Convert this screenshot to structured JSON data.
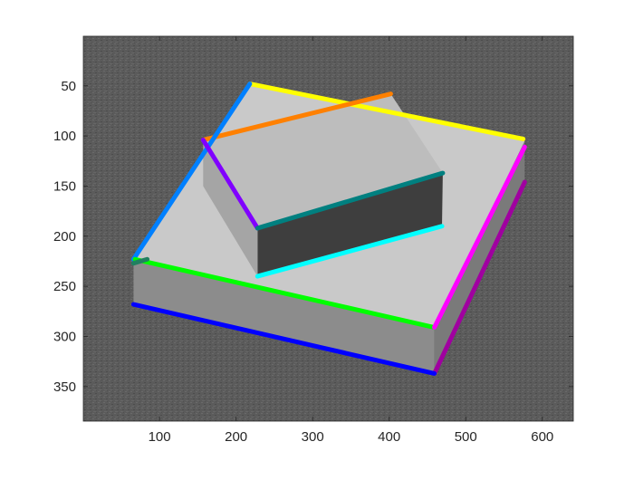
{
  "figure": {
    "background": "#ffffff"
  },
  "axes": {
    "x_ticks": [
      100,
      200,
      300,
      400,
      500,
      600
    ],
    "y_ticks": [
      50,
      100,
      150,
      200,
      250,
      300,
      350
    ],
    "x_range": [
      0.5,
      640.5
    ],
    "y_range": [
      0.5,
      384.5
    ],
    "y_reversed": true,
    "box": true,
    "tick_direction": "in"
  },
  "image": {
    "content": "grayscale SEM micrograph of two stacked rectangular blocks on a textured substrate",
    "background_gray": "#5b5b5b",
    "face_gray_top": "#c8c8c8",
    "face_gray_side": "#4a4a4a"
  },
  "edge_lines": [
    {
      "name": "yellow",
      "color": "#ffff00",
      "points": [
        [
          218,
          48
        ],
        [
          575,
          103
        ]
      ]
    },
    {
      "name": "orange",
      "color": "#ff8000",
      "points": [
        [
          157,
          104
        ],
        [
          402,
          58
        ]
      ]
    },
    {
      "name": "azure",
      "color": "#0080ff",
      "points": [
        [
          66,
          223
        ],
        [
          218,
          48
        ]
      ]
    },
    {
      "name": "violet",
      "color": "#8000ff",
      "points": [
        [
          157,
          104
        ],
        [
          228,
          192
        ]
      ]
    },
    {
      "name": "teal",
      "color": "#008080",
      "points": [
        [
          228,
          192
        ],
        [
          470,
          137
        ]
      ]
    },
    {
      "name": "cyan",
      "color": "#00ffff",
      "points": [
        [
          228,
          240
        ],
        [
          469,
          190
        ]
      ]
    },
    {
      "name": "green",
      "color": "#00ff00",
      "points": [
        [
          68,
          223
        ],
        [
          459,
          291
        ]
      ]
    },
    {
      "name": "magenta",
      "color": "#ff00ff",
      "points": [
        [
          459,
          291
        ],
        [
          577,
          111
        ]
      ]
    },
    {
      "name": "purple",
      "color": "#a000a0",
      "points": [
        [
          459,
          337
        ],
        [
          577,
          146
        ]
      ]
    },
    {
      "name": "blue",
      "color": "#0000ff",
      "points": [
        [
          66,
          268
        ],
        [
          459,
          337
        ]
      ]
    },
    {
      "name": "dark-teal",
      "color": "#208060",
      "points": [
        [
          66,
          227
        ],
        [
          84,
          223
        ]
      ]
    }
  ]
}
